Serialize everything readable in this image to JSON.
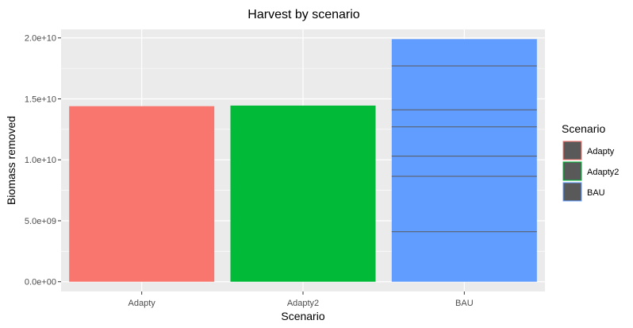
{
  "chart_data": {
    "type": "bar",
    "title": "Harvest by scenario",
    "xlabel": "Scenario",
    "ylabel": "Biomass removed",
    "categories": [
      "Adapty",
      "Adapty2",
      "BAU"
    ],
    "values": [
      14400000000,
      14450000000,
      19900000000
    ],
    "stacked_segment_boundaries": {
      "BAU": [
        4100000000,
        8650000000,
        10300000000,
        12700000000,
        14100000000,
        17700000000
      ]
    },
    "ylim": [
      -800000000,
      20700000000
    ],
    "yticks": [
      0,
      5000000000,
      10000000000,
      15000000000,
      20000000000
    ],
    "ytick_labels": [
      "0.0e+00",
      "5.0e+09",
      "1.0e+10",
      "1.5e+10",
      "2.0e+10"
    ],
    "colors": [
      "#F8766D",
      "#00BA38",
      "#619CFF"
    ],
    "segment_line_color": "#5a5a5a",
    "grid": true,
    "legend": {
      "title": "Scenario",
      "entries": [
        "Adapty",
        "Adapty2",
        "BAU"
      ],
      "placement": "right",
      "key_fill": "#595959"
    }
  }
}
